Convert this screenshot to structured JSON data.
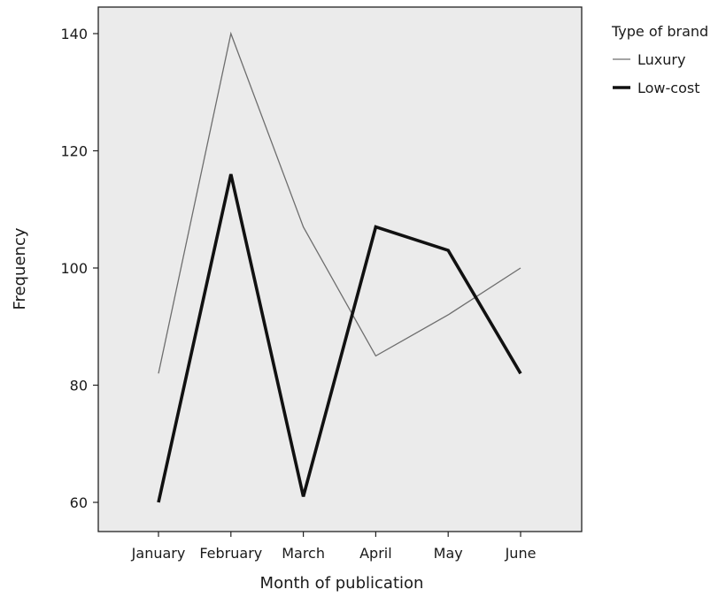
{
  "chart_data": {
    "type": "line",
    "categories": [
      "January",
      "February",
      "March",
      "April",
      "May",
      "June"
    ],
    "series": [
      {
        "name": "Luxury",
        "values": [
          82,
          140,
          107,
          85,
          92,
          100
        ],
        "color": "#6e6e6e",
        "weight": "thin"
      },
      {
        "name": "Low-cost",
        "values": [
          60,
          116,
          61,
          107,
          103,
          82
        ],
        "color": "#111111",
        "weight": "thick"
      }
    ],
    "title": "",
    "xlabel": "Month of publication",
    "ylabel": "Frequency",
    "ylim": [
      55,
      145
    ],
    "yticks": [
      60,
      80,
      100,
      120,
      140
    ],
    "legend_title": "Type of brand",
    "legend_position": "right",
    "grid": false,
    "plot_background": "#ebebeb"
  }
}
